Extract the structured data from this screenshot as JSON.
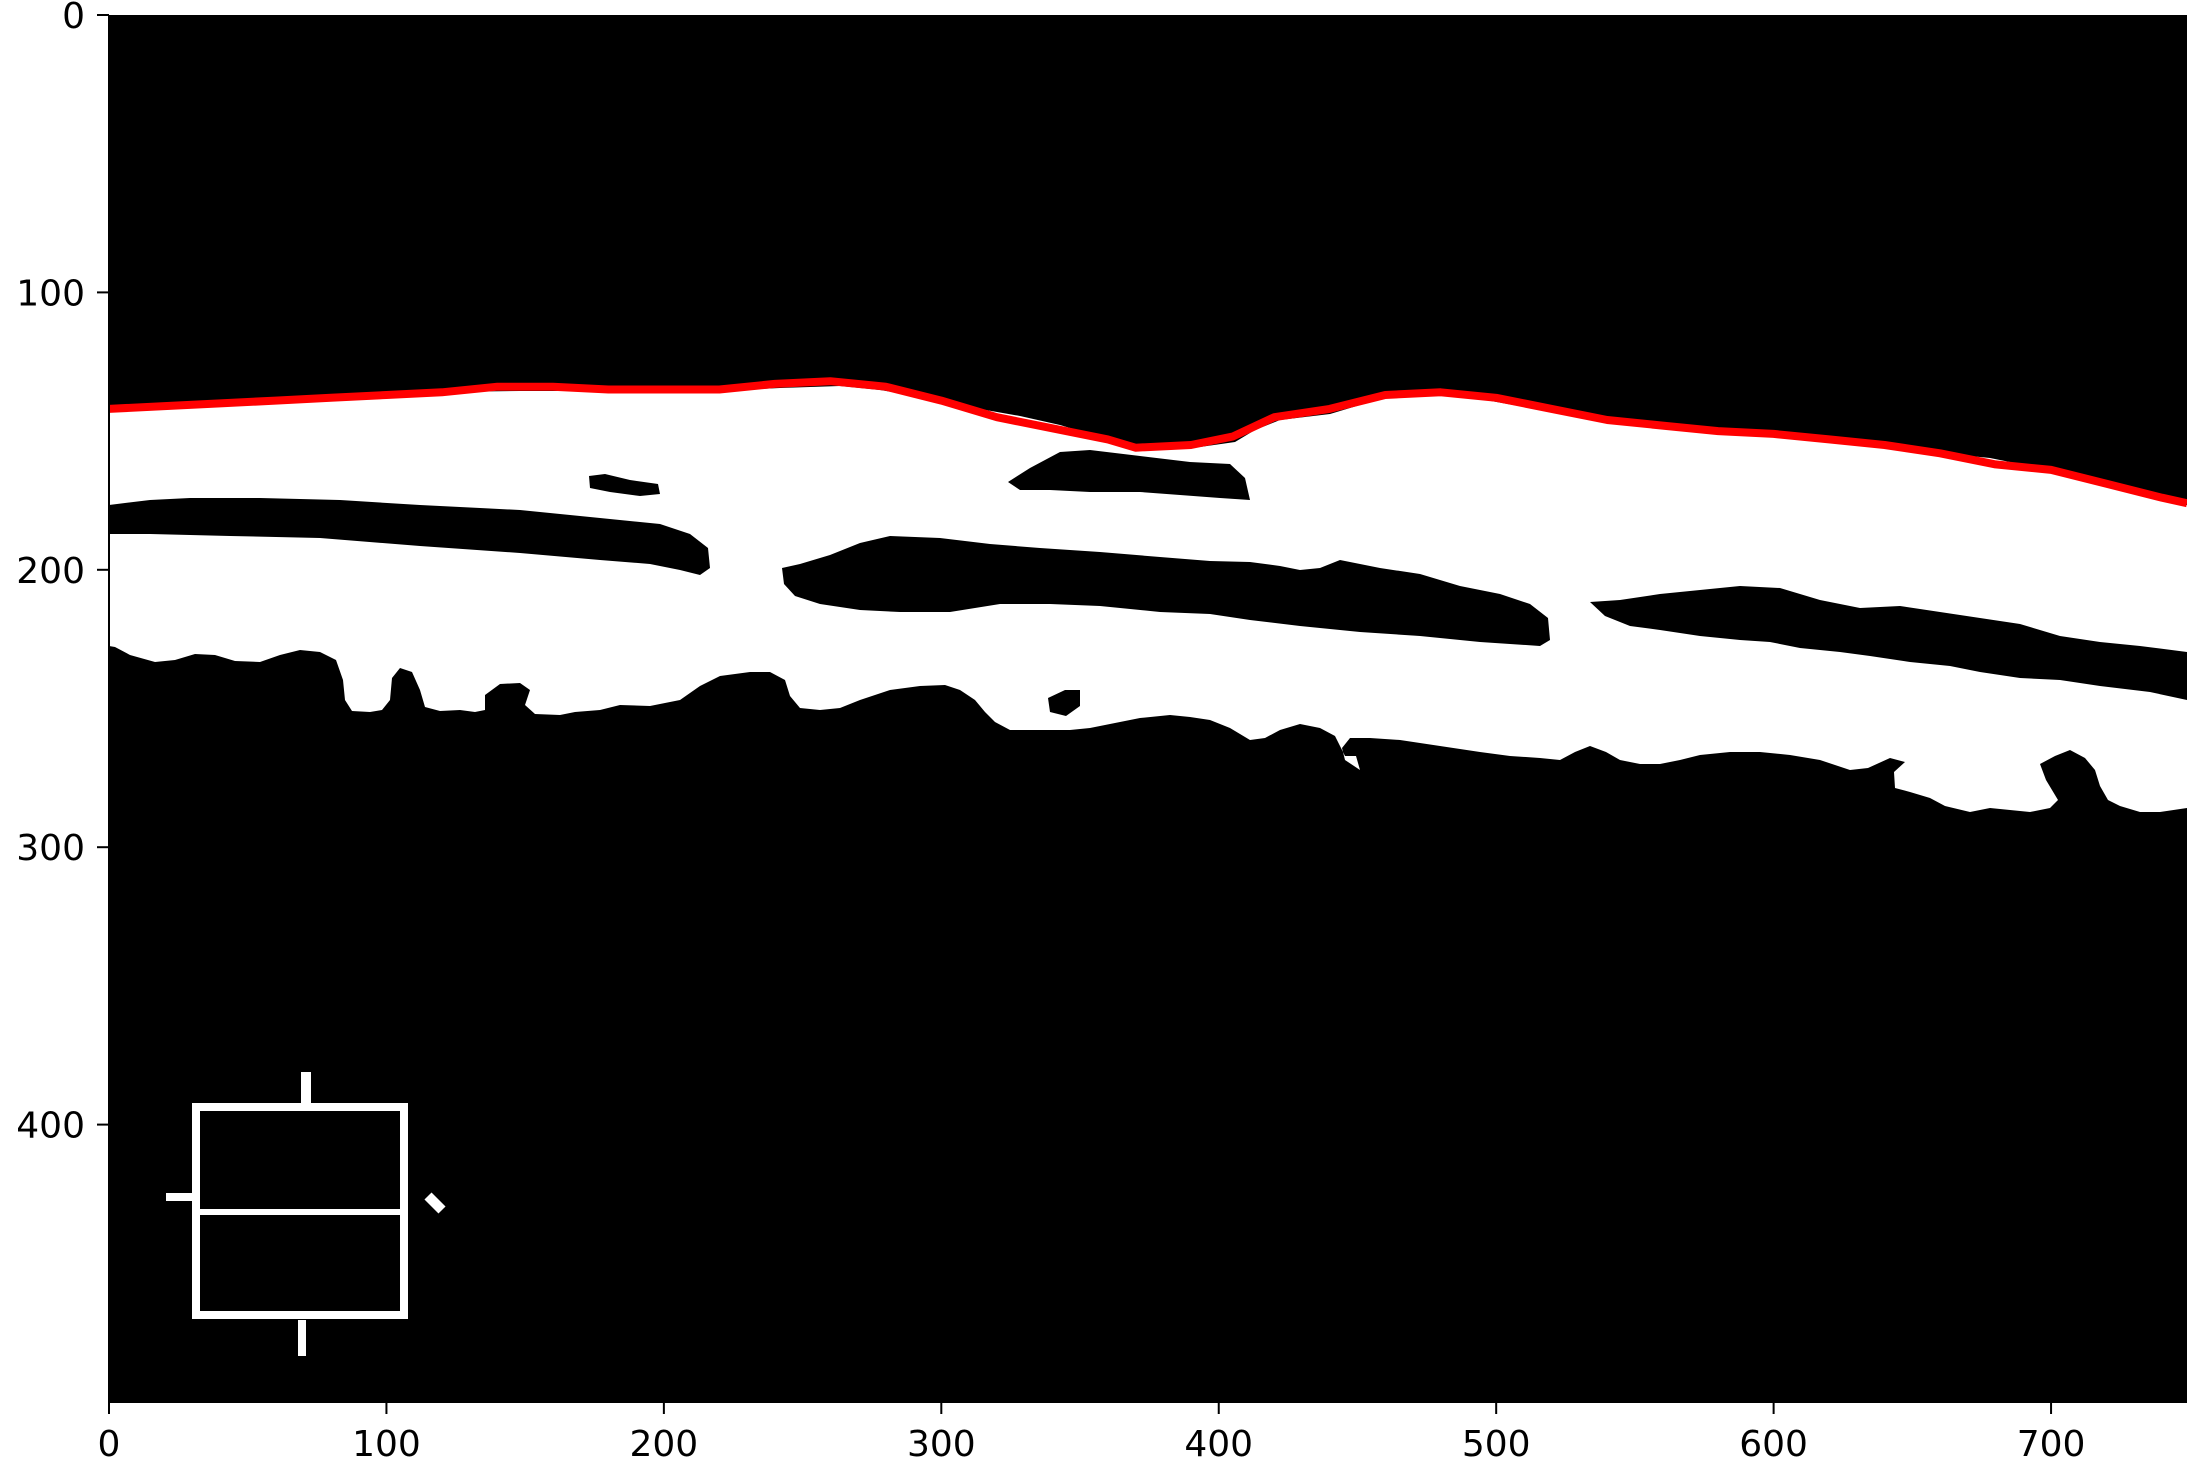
{
  "image": {
    "colors": {
      "background": "#000000",
      "foreground": "#ffffff",
      "contour": "#ff0000",
      "axes": "#000000"
    }
  },
  "axes": {
    "x_ticks": [
      {
        "value": 0,
        "label": "0"
      },
      {
        "value": 100,
        "label": "100"
      },
      {
        "value": 200,
        "label": "200"
      },
      {
        "value": 300,
        "label": "300"
      },
      {
        "value": 400,
        "label": "400"
      },
      {
        "value": 500,
        "label": "500"
      },
      {
        "value": 600,
        "label": "600"
      },
      {
        "value": 700,
        "label": "700"
      }
    ],
    "y_ticks": [
      {
        "value": 0,
        "label": "0"
      },
      {
        "value": 100,
        "label": "100"
      },
      {
        "value": 200,
        "label": "200"
      },
      {
        "value": 300,
        "label": "300"
      },
      {
        "value": 400,
        "label": "400"
      }
    ],
    "xlim": [
      0,
      749
    ],
    "ylim": [
      500,
      0
    ]
  },
  "contour": {
    "points": [
      [
        0,
        142
      ],
      [
        20,
        141
      ],
      [
        40,
        140
      ],
      [
        60,
        139
      ],
      [
        80,
        138
      ],
      [
        100,
        137
      ],
      [
        120,
        136
      ],
      [
        140,
        134
      ],
      [
        160,
        134
      ],
      [
        180,
        135
      ],
      [
        200,
        135
      ],
      [
        220,
        135
      ],
      [
        240,
        133
      ],
      [
        260,
        132
      ],
      [
        280,
        134
      ],
      [
        300,
        139
      ],
      [
        320,
        145
      ],
      [
        340,
        149
      ],
      [
        360,
        153
      ],
      [
        370,
        156
      ],
      [
        390,
        155
      ],
      [
        405,
        152
      ],
      [
        420,
        145
      ],
      [
        440,
        142
      ],
      [
        460,
        137
      ],
      [
        480,
        136
      ],
      [
        500,
        138
      ],
      [
        520,
        142
      ],
      [
        540,
        146
      ],
      [
        560,
        148
      ],
      [
        580,
        150
      ],
      [
        600,
        151
      ],
      [
        620,
        153
      ],
      [
        640,
        155
      ],
      [
        660,
        158
      ],
      [
        680,
        162
      ],
      [
        700,
        164
      ],
      [
        720,
        169
      ],
      [
        740,
        174
      ],
      [
        749,
        176
      ]
    ]
  }
}
